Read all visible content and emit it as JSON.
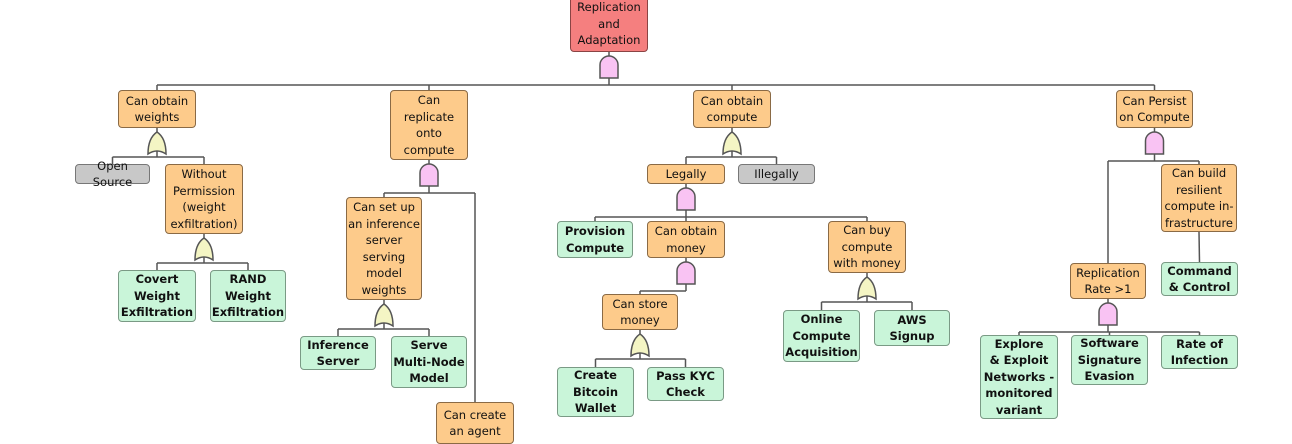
{
  "colors": {
    "root": "#f57f7f",
    "intermediate": "#fdcb8b",
    "leaf": "#c9f5d9",
    "external": "#c8c8c8",
    "and_gate": "#f9c3f3",
    "or_gate": "#f4f5c4"
  },
  "nodes": {
    "root": {
      "label": "Replication\nand\nAdaptation",
      "type": "red"
    },
    "weights": {
      "label": "Can obtain\nweights",
      "type": "orange"
    },
    "open_source": {
      "label": "Open Source",
      "type": "gray"
    },
    "without_perm": {
      "label": "Without\nPermission\n(weight\nexfiltration)",
      "type": "orange"
    },
    "covert": {
      "label": "Covert\nWeight\nExfiltration",
      "type": "green"
    },
    "rand": {
      "label": "RAND\nWeight\nExfiltration",
      "type": "green"
    },
    "replicate": {
      "label": "Can\nreplicate\nonto\ncompute",
      "type": "orange"
    },
    "inference_setup": {
      "label": "Can set up\nan inference\nserver\nserving\nmodel\nweights",
      "type": "orange"
    },
    "inference_server": {
      "label": "Inference\nServer",
      "type": "green"
    },
    "multi_node": {
      "label": "Serve\nMulti-Node\nModel",
      "type": "green"
    },
    "create_agent": {
      "label": "Can create\nan agent",
      "type": "orange"
    },
    "compute": {
      "label": "Can obtain\ncompute",
      "type": "orange"
    },
    "legally": {
      "label": "Legally",
      "type": "orange"
    },
    "illegally": {
      "label": "Illegally",
      "type": "gray"
    },
    "provision": {
      "label": "Provision\nCompute",
      "type": "green"
    },
    "money": {
      "label": "Can obtain\nmoney",
      "type": "orange"
    },
    "store_money": {
      "label": "Can store\nmoney",
      "type": "orange"
    },
    "bitcoin": {
      "label": "Create\nBitcoin\nWallet",
      "type": "green"
    },
    "kyc": {
      "label": "Pass KYC\nCheck",
      "type": "green"
    },
    "buy_compute": {
      "label": "Can buy\ncompute\nwith money",
      "type": "orange"
    },
    "online_acq": {
      "label": "Online\nCompute\nAcquisition",
      "type": "green"
    },
    "aws": {
      "label": "AWS\nSignup",
      "type": "green"
    },
    "persist": {
      "label": "Can Persist\non Compute",
      "type": "orange"
    },
    "rep_rate": {
      "label": "Replication\nRate >1",
      "type": "orange"
    },
    "explore": {
      "label": "Explore\n& Exploit\nNetworks -\nmonitored\nvariant",
      "type": "green"
    },
    "sig_evasion": {
      "label": "Software\nSignature\nEvasion",
      "type": "green"
    },
    "infection": {
      "label": "Rate of\nInfection",
      "type": "green"
    },
    "resilient": {
      "label": "Can build\nresilient\ncompute in-\nfrastructure",
      "type": "orange"
    },
    "c2": {
      "label": "Command\n& Control",
      "type": "green"
    }
  },
  "gates": [
    {
      "parent": "root",
      "type": "and",
      "children": [
        "weights",
        "replicate",
        "compute",
        "persist"
      ]
    },
    {
      "parent": "weights",
      "type": "or",
      "children": [
        "open_source",
        "without_perm"
      ]
    },
    {
      "parent": "without_perm",
      "type": "or",
      "children": [
        "covert",
        "rand"
      ]
    },
    {
      "parent": "replicate",
      "type": "and",
      "children": [
        "inference_setup",
        "create_agent"
      ]
    },
    {
      "parent": "inference_setup",
      "type": "or",
      "children": [
        "inference_server",
        "multi_node"
      ]
    },
    {
      "parent": "compute",
      "type": "or",
      "children": [
        "legally",
        "illegally"
      ]
    },
    {
      "parent": "legally",
      "type": "and",
      "children": [
        "provision",
        "money",
        "buy_compute"
      ]
    },
    {
      "parent": "money",
      "type": "and",
      "children": [
        "store_money"
      ]
    },
    {
      "parent": "store_money",
      "type": "or",
      "children": [
        "bitcoin",
        "kyc"
      ]
    },
    {
      "parent": "buy_compute",
      "type": "or",
      "children": [
        "online_acq",
        "aws"
      ]
    },
    {
      "parent": "persist",
      "type": "and",
      "children": [
        "rep_rate",
        "resilient"
      ]
    },
    {
      "parent": "rep_rate",
      "type": "and",
      "children": [
        "explore",
        "sig_evasion",
        "infection"
      ]
    }
  ],
  "direct_links": [
    [
      "resilient",
      "c2"
    ]
  ]
}
